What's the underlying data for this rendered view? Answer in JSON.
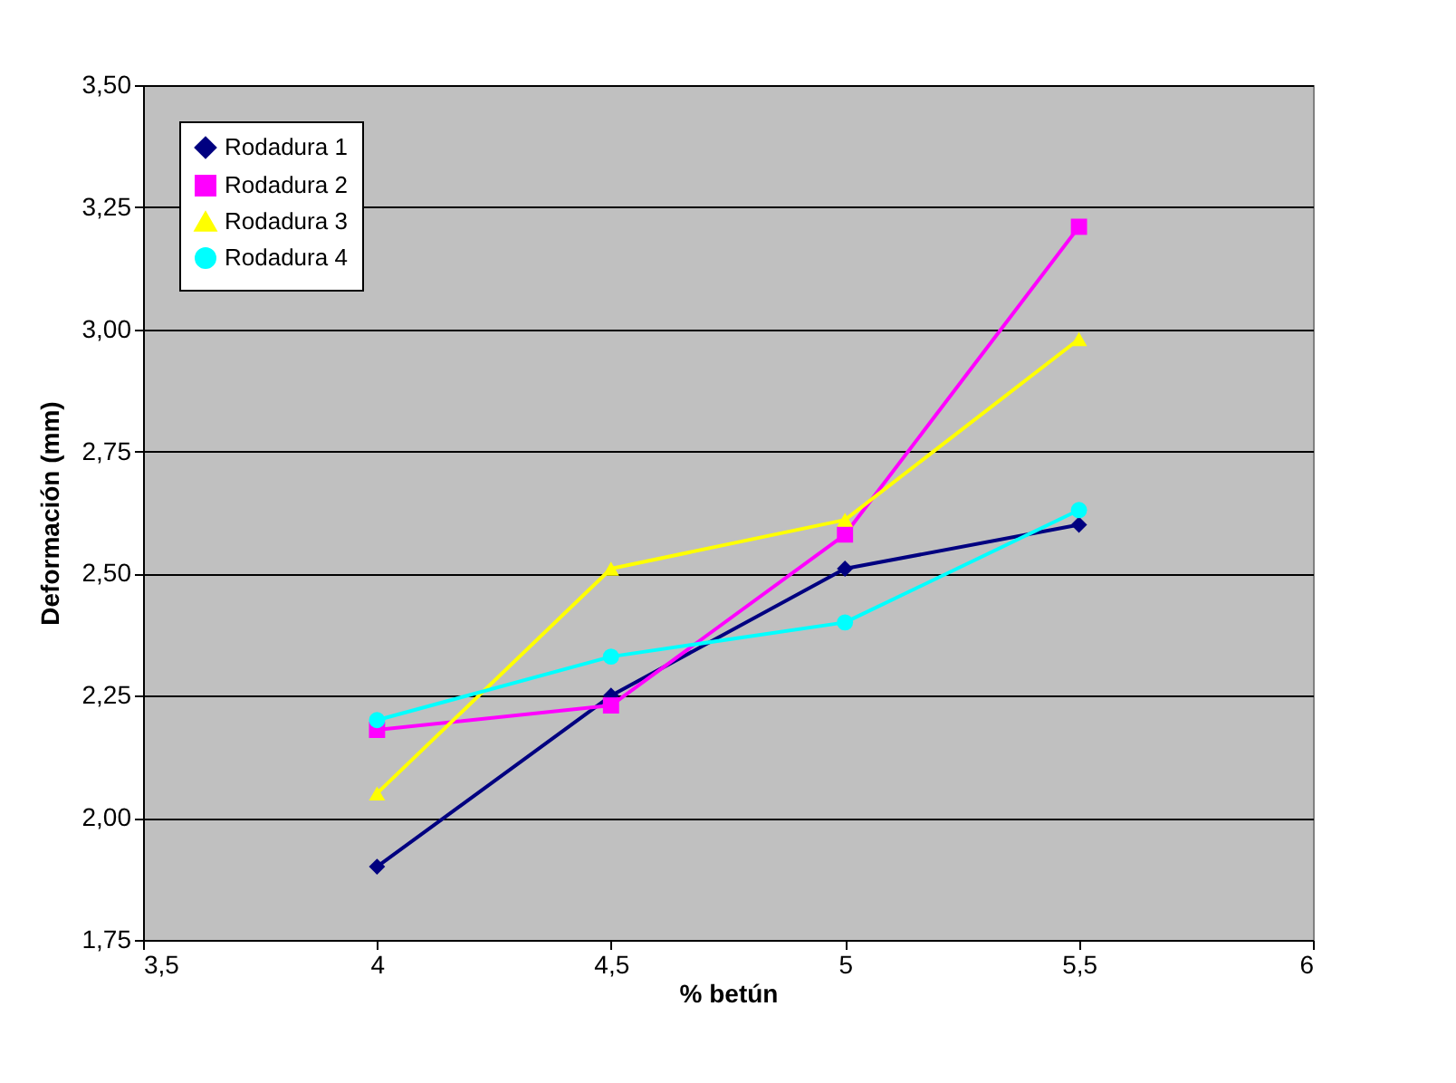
{
  "chart_data": {
    "type": "line",
    "xlabel": "% betún",
    "ylabel": "Deformación (mm)",
    "x": [
      4,
      4.5,
      5,
      5.5
    ],
    "series": [
      {
        "name": "Rodadura 1",
        "color": "#000080",
        "marker": "diamond",
        "values": [
          1.9,
          2.25,
          2.51,
          2.6
        ]
      },
      {
        "name": "Rodadura 2",
        "color": "#ff00ff",
        "marker": "square",
        "values": [
          2.18,
          2.23,
          2.58,
          3.21
        ]
      },
      {
        "name": "Rodadura 3",
        "color": "#ffff00",
        "marker": "triangle",
        "values": [
          2.05,
          2.51,
          2.61,
          2.98
        ]
      },
      {
        "name": "Rodadura 4",
        "color": "#00ffff",
        "marker": "circle",
        "values": [
          2.2,
          2.33,
          2.4,
          2.63
        ]
      }
    ],
    "xlim": [
      3.5,
      6
    ],
    "xticks": [
      {
        "value": 3.5,
        "label": "3,5"
      },
      4,
      {
        "value": 4.5,
        "label": "4,5"
      },
      5,
      {
        "value": 5.5,
        "label": "5,5"
      },
      6
    ],
    "ylim": [
      1.75,
      3.5
    ],
    "yticks": [
      {
        "value": 1.75,
        "label": "1,75"
      },
      {
        "value": 2,
        "label": "2,00"
      },
      {
        "value": 2.25,
        "label": "2,25"
      },
      {
        "value": 2.5,
        "label": "2,50"
      },
      {
        "value": 2.75,
        "label": "2,75"
      },
      {
        "value": 3,
        "label": "3,00"
      },
      {
        "value": 3.25,
        "label": "3,25"
      },
      {
        "value": 3.5,
        "label": "3,50"
      }
    ],
    "grid": "y",
    "legend": "top left",
    "line_style": "solid"
  }
}
